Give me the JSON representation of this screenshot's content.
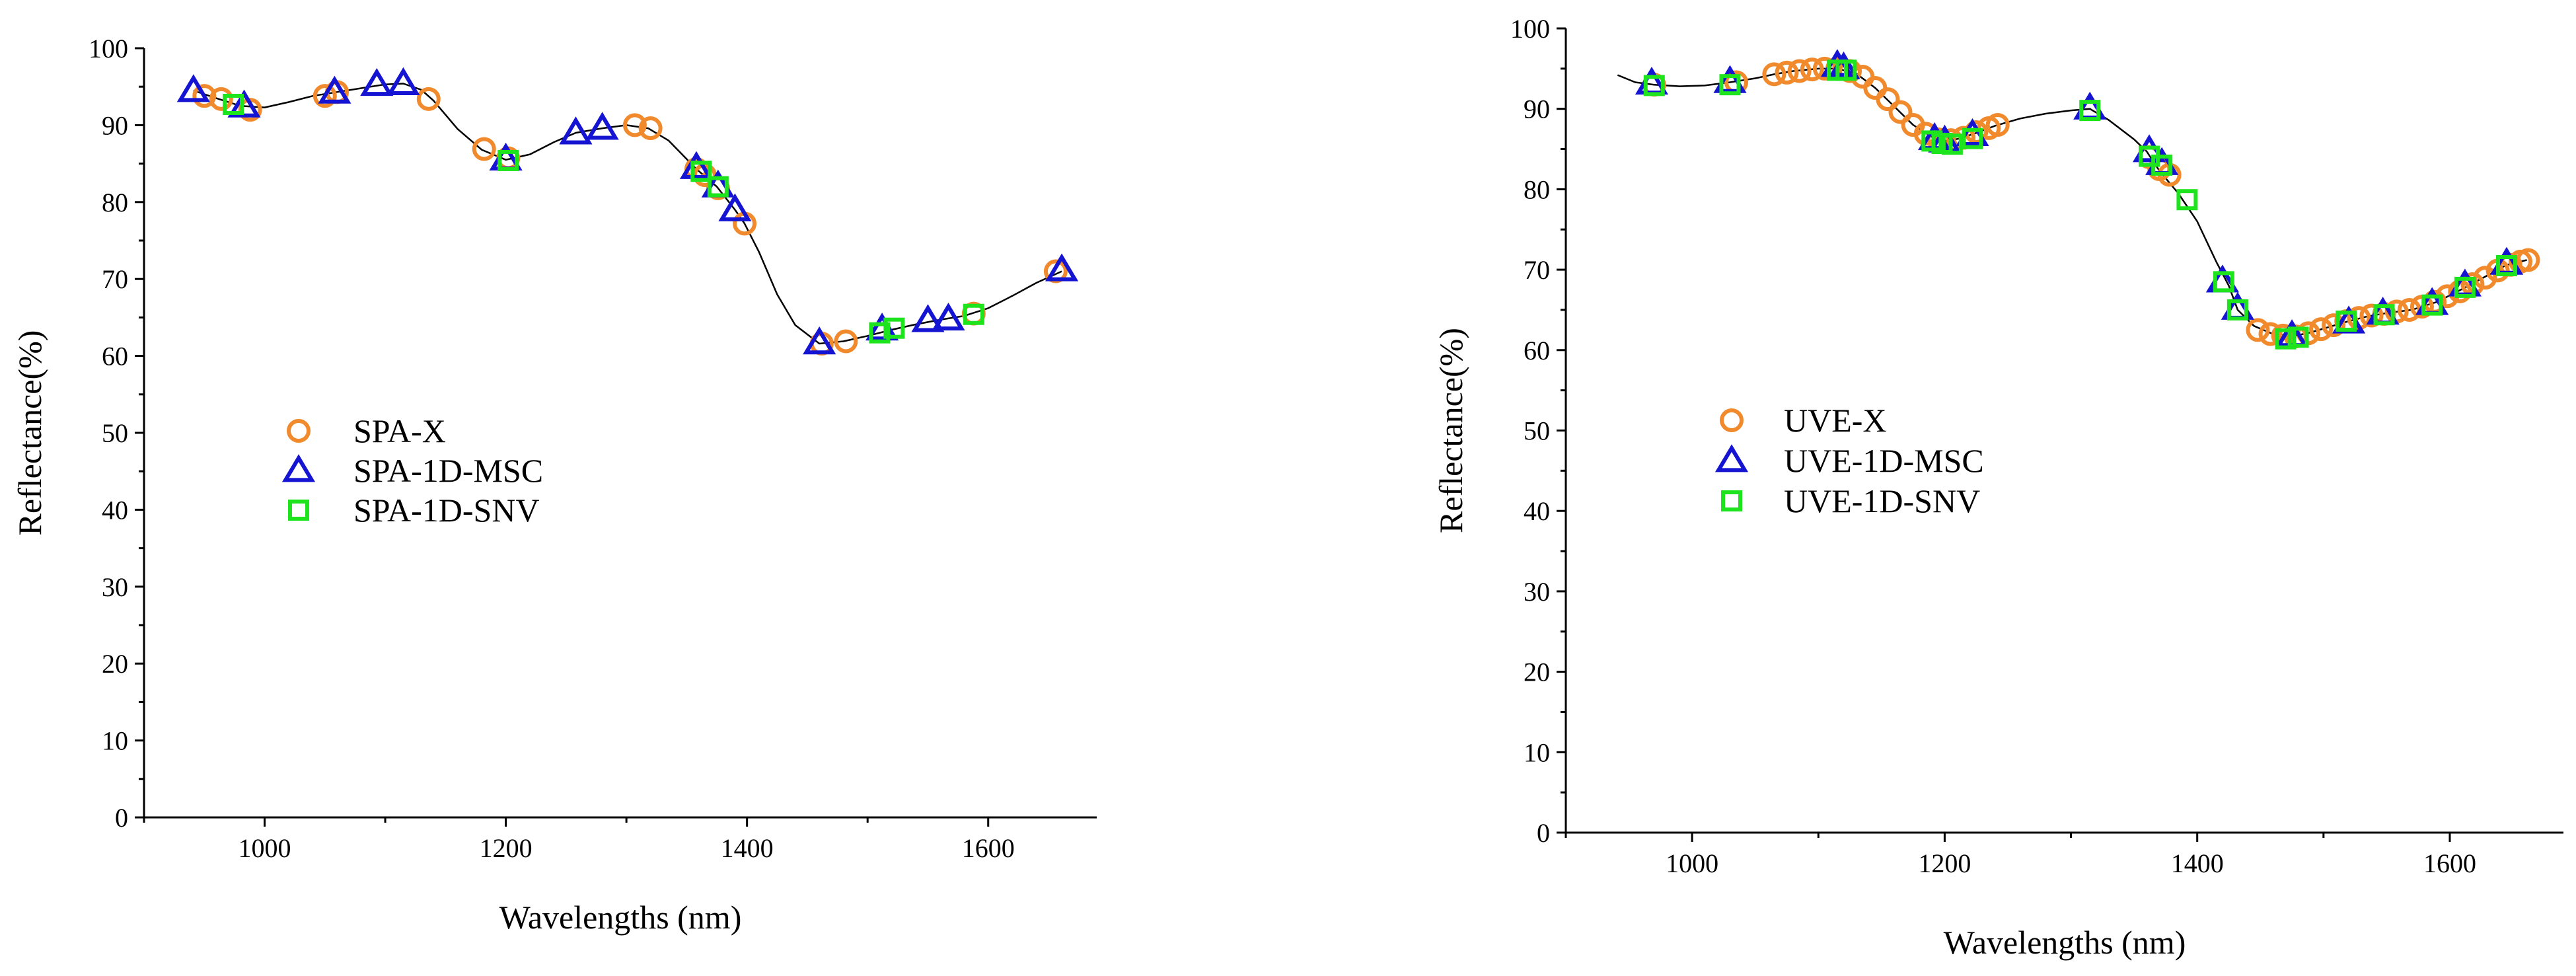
{
  "colors": {
    "x": "#f08a2c",
    "msc": "#1414d2",
    "snv": "#1ee41e",
    "curve": "#000000"
  },
  "chart_data": [
    {
      "type": "scatter",
      "panel": "left",
      "xlabel": "Wavelengths (nm)",
      "ylabel": "Reflectance(%)",
      "xlim": [
        900,
        1690
      ],
      "ylim": [
        0,
        100
      ],
      "xticks": [
        1000,
        1200,
        1400,
        1600
      ],
      "yticks": [
        0,
        10,
        20,
        30,
        40,
        50,
        60,
        70,
        80,
        90,
        100
      ],
      "legend_position": "center-left",
      "curve": [
        [
          941,
          94.5
        ],
        [
          960,
          93.5
        ],
        [
          980,
          92.5
        ],
        [
          1000,
          92.3
        ],
        [
          1020,
          93.0
        ],
        [
          1040,
          93.8
        ],
        [
          1060,
          94.3
        ],
        [
          1080,
          94.8
        ],
        [
          1100,
          95.3
        ],
        [
          1115,
          95.4
        ],
        [
          1130,
          94.6
        ],
        [
          1140,
          93.2
        ],
        [
          1160,
          89.5
        ],
        [
          1180,
          86.8
        ],
        [
          1200,
          85.5
        ],
        [
          1220,
          86.2
        ],
        [
          1240,
          87.8
        ],
        [
          1258,
          89.0
        ],
        [
          1280,
          89.6
        ],
        [
          1300,
          90.0
        ],
        [
          1318,
          89.6
        ],
        [
          1335,
          88.0
        ],
        [
          1358,
          84.3
        ],
        [
          1375,
          82.0
        ],
        [
          1390,
          79.0
        ],
        [
          1398,
          77.2
        ],
        [
          1410,
          73.5
        ],
        [
          1425,
          68.0
        ],
        [
          1440,
          64.0
        ],
        [
          1460,
          61.6
        ],
        [
          1480,
          61.9
        ],
        [
          1500,
          62.6
        ],
        [
          1520,
          63.4
        ],
        [
          1540,
          64.1
        ],
        [
          1560,
          64.7
        ],
        [
          1580,
          65.2
        ],
        [
          1600,
          66.2
        ],
        [
          1620,
          67.8
        ],
        [
          1640,
          69.5
        ],
        [
          1661,
          71.0
        ]
      ],
      "series": [
        {
          "name": "SPA-X",
          "marker": "circle",
          "points": [
            [
              950,
              93.8
            ],
            [
              964,
              93.4
            ],
            [
              988,
              92.0
            ],
            [
              1050,
              93.8
            ],
            [
              1060,
              94.3
            ],
            [
              1136,
              93.4
            ],
            [
              1182,
              86.9
            ],
            [
              1202,
              85.7
            ],
            [
              1307,
              90.0
            ],
            [
              1320,
              89.6
            ],
            [
              1358,
              84.3
            ],
            [
              1365,
              83.5
            ],
            [
              1376,
              81.8
            ],
            [
              1398,
              77.2
            ],
            [
              1462,
              61.6
            ],
            [
              1482,
              61.9
            ],
            [
              1588,
              65.5
            ],
            [
              1656,
              71.0
            ]
          ]
        },
        {
          "name": "SPA-1D-MSC",
          "marker": "triangle",
          "points": [
            [
              941,
              94.5
            ],
            [
              983,
              92.5
            ],
            [
              1058,
              94.3
            ],
            [
              1093,
              95.3
            ],
            [
              1115,
              95.4
            ],
            [
              1200,
              85.6
            ],
            [
              1258,
              89.0
            ],
            [
              1280,
              89.6
            ],
            [
              1358,
              84.5
            ],
            [
              1376,
              82.1
            ],
            [
              1390,
              79.0
            ],
            [
              1460,
              61.7
            ],
            [
              1512,
              63.5
            ],
            [
              1550,
              64.6
            ],
            [
              1567,
              64.8
            ],
            [
              1661,
              71.2
            ]
          ]
        },
        {
          "name": "SPA-1D-SNV",
          "marker": "square",
          "points": [
            [
              974,
              92.7
            ],
            [
              1202,
              85.4
            ],
            [
              1362,
              84.0
            ],
            [
              1376,
              82.0
            ],
            [
              1510,
              63.0
            ],
            [
              1522,
              63.6
            ],
            [
              1588,
              65.4
            ]
          ]
        }
      ]
    },
    {
      "type": "scatter",
      "panel": "right",
      "xlabel": "Wavelengths (nm)",
      "ylabel": "Reflectance(%)",
      "xlim": [
        900,
        1690
      ],
      "ylim": [
        0,
        100
      ],
      "xticks": [
        1000,
        1200,
        1400,
        1600
      ],
      "yticks": [
        0,
        10,
        20,
        30,
        40,
        50,
        60,
        70,
        80,
        90,
        100
      ],
      "legend_position": "center-left",
      "curve": [
        [
          941,
          94.2
        ],
        [
          955,
          93.3
        ],
        [
          970,
          93.0
        ],
        [
          990,
          92.8
        ],
        [
          1010,
          92.9
        ],
        [
          1030,
          93.3
        ],
        [
          1050,
          93.8
        ],
        [
          1065,
          94.3
        ],
        [
          1080,
          94.7
        ],
        [
          1100,
          95.0
        ],
        [
          1115,
          95.0
        ],
        [
          1130,
          94.4
        ],
        [
          1145,
          92.6
        ],
        [
          1160,
          90.3
        ],
        [
          1175,
          88.0
        ],
        [
          1190,
          86.5
        ],
        [
          1200,
          86.0
        ],
        [
          1212,
          86.3
        ],
        [
          1225,
          87.0
        ],
        [
          1240,
          87.9
        ],
        [
          1260,
          88.8
        ],
        [
          1280,
          89.4
        ],
        [
          1300,
          89.8
        ],
        [
          1315,
          90.0
        ],
        [
          1330,
          88.6
        ],
        [
          1350,
          86.2
        ],
        [
          1360,
          84.7
        ],
        [
          1370,
          82.3
        ],
        [
          1385,
          79.5
        ],
        [
          1400,
          76.0
        ],
        [
          1415,
          71.0
        ],
        [
          1425,
          68.0
        ],
        [
          1432,
          65.0
        ],
        [
          1445,
          63.0
        ],
        [
          1460,
          62.0
        ],
        [
          1475,
          61.7
        ],
        [
          1490,
          62.2
        ],
        [
          1505,
          62.9
        ],
        [
          1520,
          63.6
        ],
        [
          1535,
          64.2
        ],
        [
          1550,
          64.6
        ],
        [
          1570,
          65.0
        ],
        [
          1590,
          66.0
        ],
        [
          1610,
          67.6
        ],
        [
          1630,
          69.3
        ],
        [
          1645,
          70.6
        ],
        [
          1661,
          71.2
        ]
      ],
      "series": [
        {
          "name": "UVE-X",
          "marker": "circle",
          "points": [
            [
              970,
              93.0
            ],
            [
              1035,
              93.3
            ],
            [
              1065,
              94.3
            ],
            [
              1075,
              94.5
            ],
            [
              1085,
              94.7
            ],
            [
              1095,
              94.9
            ],
            [
              1105,
              95.0
            ],
            [
              1115,
              95.0
            ],
            [
              1125,
              94.7
            ],
            [
              1135,
              94.0
            ],
            [
              1145,
              92.6
            ],
            [
              1155,
              91.2
            ],
            [
              1165,
              89.6
            ],
            [
              1175,
              88.0
            ],
            [
              1185,
              86.9
            ],
            [
              1195,
              86.2
            ],
            [
              1205,
              86.1
            ],
            [
              1215,
              86.4
            ],
            [
              1225,
              87.1
            ],
            [
              1235,
              87.6
            ],
            [
              1242,
              88.0
            ],
            [
              1362,
              84.0
            ],
            [
              1370,
              82.5
            ],
            [
              1378,
              81.8
            ],
            [
              1448,
              62.5
            ],
            [
              1458,
              62.0
            ],
            [
              1468,
              61.8
            ],
            [
              1478,
              61.7
            ],
            [
              1488,
              62.1
            ],
            [
              1498,
              62.6
            ],
            [
              1508,
              63.1
            ],
            [
              1518,
              63.6
            ],
            [
              1528,
              64.0
            ],
            [
              1538,
              64.3
            ],
            [
              1548,
              64.5
            ],
            [
              1558,
              64.8
            ],
            [
              1568,
              65.0
            ],
            [
              1578,
              65.4
            ],
            [
              1588,
              66.0
            ],
            [
              1598,
              66.7
            ],
            [
              1608,
              67.3
            ],
            [
              1618,
              68.2
            ],
            [
              1628,
              69.0
            ],
            [
              1638,
              69.9
            ],
            [
              1648,
              70.6
            ],
            [
              1656,
              71.0
            ],
            [
              1662,
              71.2
            ]
          ]
        },
        {
          "name": "UVE-1D-MSC",
          "marker": "triangle",
          "points": [
            [
              968,
              93.2
            ],
            [
              1030,
              93.4
            ],
            [
              1115,
              95.4
            ],
            [
              1120,
              95.1
            ],
            [
              1192,
              86.3
            ],
            [
              1200,
              86.0
            ],
            [
              1222,
              86.8
            ],
            [
              1315,
              90.1
            ],
            [
              1362,
              84.8
            ],
            [
              1372,
              83.2
            ],
            [
              1420,
              68.6
            ],
            [
              1432,
              65.2
            ],
            [
              1475,
              61.8
            ],
            [
              1520,
              63.5
            ],
            [
              1547,
              64.6
            ],
            [
              1586,
              65.8
            ],
            [
              1612,
              68.1
            ],
            [
              1645,
              70.8
            ]
          ]
        },
        {
          "name": "UVE-1D-SNV",
          "marker": "square",
          "points": [
            [
              970,
              92.9
            ],
            [
              1030,
              93.0
            ],
            [
              1115,
              94.8
            ],
            [
              1122,
              94.8
            ],
            [
              1190,
              86.0
            ],
            [
              1198,
              85.7
            ],
            [
              1206,
              85.6
            ],
            [
              1222,
              86.3
            ],
            [
              1315,
              89.8
            ],
            [
              1362,
              84.1
            ],
            [
              1372,
              83.0
            ],
            [
              1392,
              78.7
            ],
            [
              1421,
              68.5
            ],
            [
              1432,
              65.0
            ],
            [
              1470,
              61.4
            ],
            [
              1480,
              61.6
            ],
            [
              1518,
              63.6
            ],
            [
              1548,
              64.4
            ],
            [
              1586,
              65.6
            ],
            [
              1612,
              67.8
            ],
            [
              1645,
              70.5
            ]
          ]
        }
      ]
    }
  ]
}
